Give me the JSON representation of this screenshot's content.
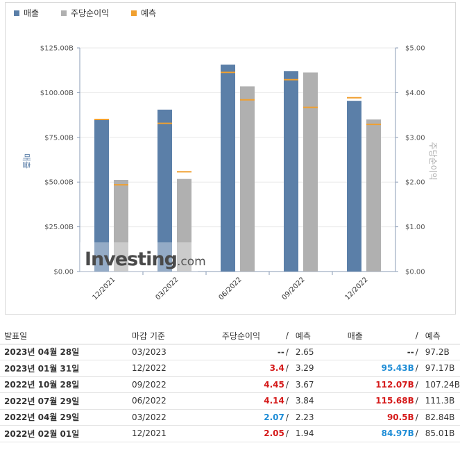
{
  "legend": [
    {
      "label": "매출",
      "color": "#5b7fa8"
    },
    {
      "label": "주당순이익",
      "color": "#b0b0b0"
    },
    {
      "label": "예측",
      "color": "#f0a030"
    }
  ],
  "chart_data": {
    "type": "bar",
    "categories": [
      "12/2021",
      "03/2022",
      "06/2022",
      "09/2022",
      "12/2022"
    ],
    "left_axis": {
      "title": "매출",
      "min": 0,
      "max": 125,
      "ticks": [
        "$0.00",
        "$25.00B",
        "$50.00B",
        "$75.00B",
        "$100.00B",
        "$125.00B"
      ]
    },
    "right_axis": {
      "title": "주당순이익",
      "min": 0,
      "max": 5,
      "ticks": [
        "$0.00",
        "$1.00",
        "$2.00",
        "$3.00",
        "$4.00",
        "$5.00"
      ]
    },
    "series": [
      {
        "name": "매출",
        "axis": "left",
        "values": [
          84.97,
          90.5,
          115.68,
          112.07,
          95.43
        ],
        "forecast": [
          85.01,
          82.84,
          111.3,
          107.24,
          97.17
        ]
      },
      {
        "name": "주당순이익",
        "axis": "right",
        "values": [
          2.05,
          2.07,
          4.14,
          4.45,
          3.4
        ],
        "forecast": [
          1.94,
          2.23,
          3.84,
          3.67,
          3.29
        ]
      }
    ],
    "colors": {
      "revenue": "#5b7fa8",
      "eps": "#b0b0b0",
      "forecast": "#f0a030"
    },
    "watermark": "Investing.com"
  },
  "table": {
    "headers": {
      "date": "발표일",
      "period": "마감 기준",
      "eps": "주당순이익",
      "slash": "/",
      "eps_forecast": "예측",
      "revenue": "매출",
      "revenue_forecast": "예측"
    },
    "rows": [
      {
        "date": "2023년 04월 28일",
        "period": "03/2023",
        "eps": "--",
        "eps_forecast": "2.65",
        "revenue": "--",
        "revenue_forecast": "97.2B",
        "eps_status": "neutral",
        "rev_status": "neutral"
      },
      {
        "date": "2023년 01월 31일",
        "period": "12/2022",
        "eps": "3.4",
        "eps_forecast": "3.29",
        "revenue": "95.43B",
        "revenue_forecast": "97.17B",
        "eps_status": "red",
        "rev_status": "blue"
      },
      {
        "date": "2022년 10월 28일",
        "period": "09/2022",
        "eps": "4.45",
        "eps_forecast": "3.67",
        "revenue": "112.07B",
        "revenue_forecast": "107.24B",
        "eps_status": "red",
        "rev_status": "red"
      },
      {
        "date": "2022년 07월 29일",
        "period": "06/2022",
        "eps": "4.14",
        "eps_forecast": "3.84",
        "revenue": "115.68B",
        "revenue_forecast": "111.3B",
        "eps_status": "red",
        "rev_status": "red"
      },
      {
        "date": "2022년 04월 29일",
        "period": "03/2022",
        "eps": "2.07",
        "eps_forecast": "2.23",
        "revenue": "90.5B",
        "revenue_forecast": "82.84B",
        "eps_status": "blue",
        "rev_status": "red"
      },
      {
        "date": "2022년 02월 01일",
        "period": "12/2021",
        "eps": "2.05",
        "eps_forecast": "1.94",
        "revenue": "84.97B",
        "revenue_forecast": "85.01B",
        "eps_status": "red",
        "rev_status": "blue"
      }
    ]
  }
}
